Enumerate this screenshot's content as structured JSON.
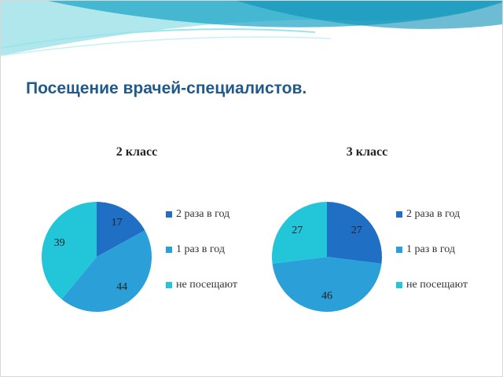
{
  "title": "Посещение врачей-специалистов.",
  "chart_data": [
    {
      "type": "pie",
      "title": "2 класс",
      "categories": [
        "2 раза в год",
        "1 раз в год",
        "не посещают"
      ],
      "values": [
        17,
        44,
        39
      ],
      "colors": [
        "#1f6fc5",
        "#2a9fd8",
        "#22c6d8"
      ]
    },
    {
      "type": "pie",
      "title": "3 класс",
      "categories": [
        "2 раза в год",
        "1 раз в год",
        "не посещают"
      ],
      "values": [
        27,
        46,
        27
      ],
      "colors": [
        "#1f6fc5",
        "#2a9fd8",
        "#22c6d8"
      ]
    }
  ]
}
